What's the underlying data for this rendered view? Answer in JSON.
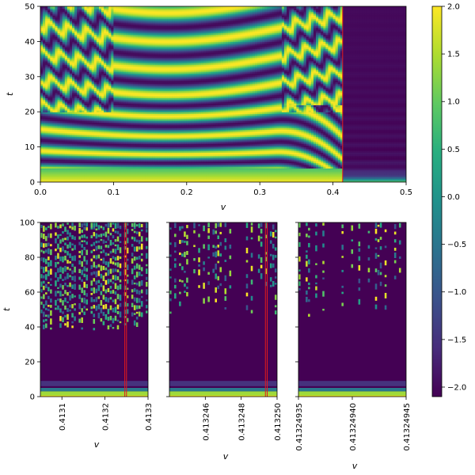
{
  "chart_data": [
    {
      "id": "top",
      "type": "heatmap",
      "xlabel": "v",
      "ylabel": "t",
      "xlim": [
        0.0,
        0.5
      ],
      "ylim": [
        0,
        50
      ],
      "xticks": [
        0.0,
        0.1,
        0.2,
        0.3,
        0.4,
        0.5
      ],
      "xtick_labels": [
        "0.0",
        "0.1",
        "0.2",
        "0.3",
        "0.4",
        "0.5"
      ],
      "yticks": [
        0,
        10,
        20,
        30,
        40,
        50
      ],
      "ytick_labels": [
        "0",
        "10",
        "20",
        "30",
        "40",
        "50"
      ],
      "vlines": [
        0.4132
      ],
      "transition_v": 0.4132
    },
    {
      "id": "zoom1",
      "type": "heatmap",
      "xlabel": "v",
      "ylabel": "t",
      "xlim": [
        0.41305,
        0.4133
      ],
      "ylim": [
        0,
        100
      ],
      "xticks": [
        0.4131,
        0.4132,
        0.4133
      ],
      "xtick_labels": [
        "0.4131",
        "0.4132",
        "0.4133"
      ],
      "yticks": [
        0,
        20,
        40,
        60,
        80,
        100
      ],
      "ytick_labels": [
        "0",
        "20",
        "40",
        "60",
        "80",
        "100"
      ],
      "vlines": [
        0.413246,
        0.41325
      ]
    },
    {
      "id": "zoom2",
      "type": "heatmap",
      "xlabel": "v",
      "ylabel": "",
      "xlim": [
        0.413244,
        0.41325
      ],
      "ylim": [
        0,
        100
      ],
      "xticks": [
        0.413246,
        0.413248,
        0.41325
      ],
      "xtick_labels": [
        "0.413246",
        "0.413248",
        "0.413250"
      ],
      "yticks": [
        0,
        20,
        40,
        60,
        80,
        100
      ],
      "ytick_labels": [],
      "vlines": [
        0.41324935,
        0.41324945
      ]
    },
    {
      "id": "zoom3",
      "type": "heatmap",
      "xlabel": "v",
      "ylabel": "",
      "xlim": [
        0.41324935,
        0.41324945
      ],
      "ylim": [
        0,
        100
      ],
      "xticks": [
        0.41324935,
        0.4132494,
        0.41324945
      ],
      "xtick_labels": [
        "0.41324935",
        "0.41324940",
        "0.41324945"
      ],
      "yticks": [
        0,
        20,
        40,
        60,
        80,
        100
      ],
      "ytick_labels": [],
      "vlines": []
    }
  ],
  "colorbar": {
    "colormap": "viridis",
    "range": [
      -2.1,
      2.0
    ],
    "ticks": [
      2.0,
      1.5,
      1.0,
      0.5,
      0.0,
      -0.5,
      -1.0,
      -1.5,
      -2.0
    ],
    "tick_labels": [
      "2.0",
      "1.5",
      "1.0",
      "0.5",
      "0.0",
      "−0.5",
      "−1.0",
      "−1.5",
      "−2.0"
    ]
  },
  "colors": {
    "marker_line": "#e41a1c",
    "dark": "#440154",
    "bright": "#fde725"
  }
}
